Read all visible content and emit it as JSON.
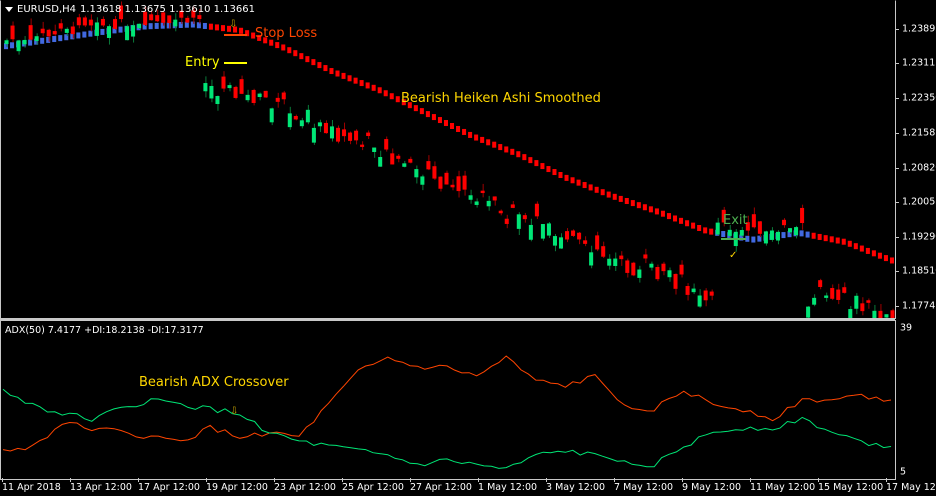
{
  "window": {
    "symbol_label": "EURUSD,H4",
    "ohlc": "1.13618 1.13675 1.13610 1.13661"
  },
  "colors": {
    "background": "#000000",
    "bull_candle": "#00e676",
    "bear_candle": "#ff0000",
    "ha_bear": "#ff0000",
    "ha_bull": "#4169e1",
    "plus_di": "#ff4500",
    "minus_di": "#00e676",
    "annotation_yellow": "#ffd700",
    "stop_loss": "#ff4500",
    "exit_green": "#4caf50",
    "axis": "#c8c8c8"
  },
  "price_axis": {
    "labels": [
      "1.23895",
      "1.23115",
      "1.22350",
      "1.21585",
      "1.20820",
      "1.20055",
      "1.19290",
      "1.18510",
      "1.17745"
    ]
  },
  "indicator": {
    "label": "ADX(50) 7.4177 +DI:18.2138 -DI:17.3177",
    "axis_max": "39",
    "axis_min": "5"
  },
  "time_axis": {
    "labels": [
      "11 Apr 2018",
      "13 Apr 12:00",
      "17 Apr 12:00",
      "19 Apr 12:00",
      "23 Apr 12:00",
      "25 Apr 12:00",
      "27 Apr 12:00",
      "1 May 12:00",
      "3 May 12:00",
      "7 May 12:00",
      "9 May 12:00",
      "11 May 12:00",
      "15 May 12:00",
      "17 May 12:00"
    ]
  },
  "annotations": {
    "stop_loss": "Stop Loss",
    "entry": "Entry",
    "ha_smoothed": "Bearish Heiken Ashi Smoothed",
    "exit": "Exit",
    "adx_crossover": "Bearish ADX Crossover",
    "down_arrow": "⇩",
    "check": "✓"
  },
  "chart_data": [
    {
      "type": "candlestick",
      "title": "EURUSD,H4",
      "ylim": [
        1.1735,
        1.2425
      ],
      "yticks": [
        1.23895,
        1.23115,
        1.2235,
        1.21585,
        1.2082,
        1.20055,
        1.1929,
        1.1851,
        1.17745
      ],
      "overlay": "Heiken Ashi Smoothed (blue=bullish, red=bearish)",
      "trend_path_y": [
        1.2335,
        1.235,
        1.2365,
        1.2378,
        1.2382,
        1.237,
        1.233,
        1.228,
        1.224,
        1.219,
        1.214,
        1.21,
        1.205,
        1.201,
        1.1975,
        1.1935,
        1.1915,
        1.193,
        1.191,
        1.187
      ],
      "annotations": [
        "Stop Loss",
        "Entry",
        "Bearish Heiken Ashi Smoothed",
        "Exit"
      ]
    },
    {
      "type": "line",
      "title": "ADX(50) 7.4177 +DI:18.2138 -DI:17.3177",
      "ylim": [
        5,
        39
      ],
      "series": [
        {
          "name": "+DI",
          "color": "#ff4500",
          "values": [
            11,
            12,
            17,
            16,
            15,
            14,
            13,
            16,
            14,
            15,
            14,
            21,
            28,
            31,
            29,
            29,
            27,
            31,
            26,
            25,
            27,
            21,
            20,
            24,
            21,
            20,
            18,
            22,
            22,
            23,
            22
          ]
        },
        {
          "name": "-DI",
          "color": "#00e676",
          "values": [
            24,
            21,
            19,
            18,
            20,
            22,
            21,
            20,
            19,
            15,
            13,
            12,
            11,
            10,
            8,
            9,
            8,
            7,
            10,
            11,
            10,
            9,
            8,
            12,
            15,
            16,
            16,
            18,
            15,
            13,
            12
          ]
        }
      ],
      "annotations": [
        "Bearish ADX Crossover"
      ]
    }
  ]
}
